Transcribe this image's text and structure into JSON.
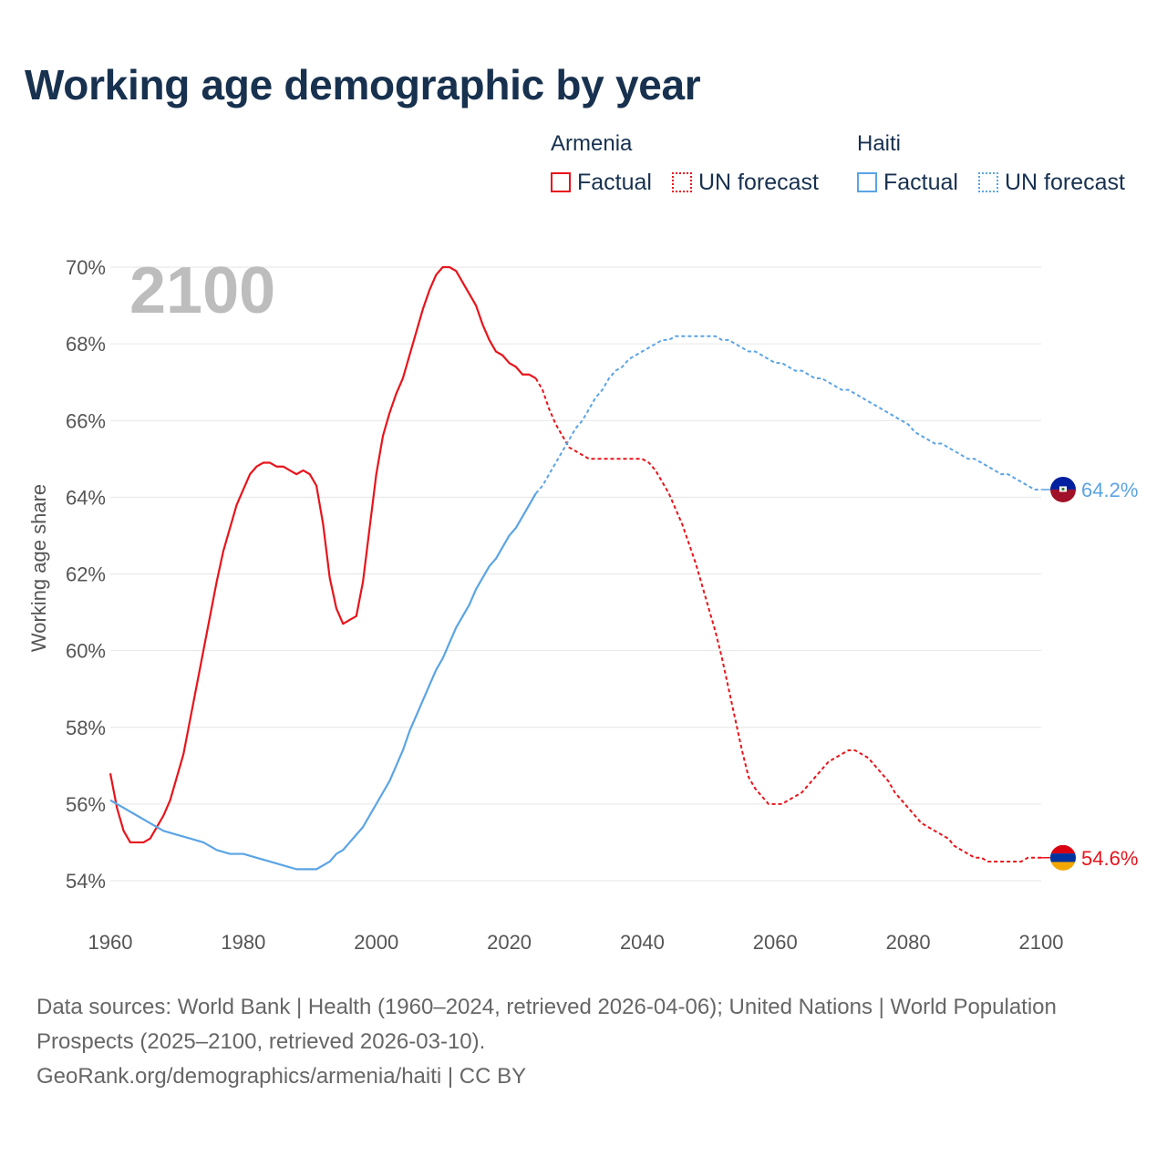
{
  "title": "Working age demographic by year",
  "legend": {
    "groups": [
      {
        "country": "Armenia",
        "color": "#e8141b",
        "factual_label": "Factual",
        "forecast_label": "UN forecast"
      },
      {
        "country": "Haiti",
        "color": "#5ba4e5",
        "factual_label": "Factual",
        "forecast_label": "UN forecast"
      }
    ]
  },
  "chart_data": {
    "type": "line",
    "title": "Working age demographic by year",
    "xlabel": "",
    "ylabel": "Working age share",
    "xlim": [
      1960,
      2100
    ],
    "ylim": [
      54,
      70
    ],
    "x_ticks": [
      "1960",
      "1980",
      "2000",
      "2020",
      "2040",
      "2060",
      "2080",
      "2100"
    ],
    "y_ticks": [
      "54%",
      "56%",
      "58%",
      "60%",
      "62%",
      "64%",
      "66%",
      "68%",
      "70%"
    ],
    "year_label": "2100",
    "factual_range": "1960–2024",
    "forecast_range": "2024–2100",
    "series": [
      {
        "name": "Armenia",
        "color": "#e8141b",
        "end_value": 54.6,
        "end_label": "54.6%",
        "factual": [
          [
            1960,
            56.8
          ],
          [
            1961,
            55.9
          ],
          [
            1962,
            55.3
          ],
          [
            1963,
            55.0
          ],
          [
            1964,
            55.0
          ],
          [
            1965,
            55.0
          ],
          [
            1966,
            55.1
          ],
          [
            1967,
            55.4
          ],
          [
            1968,
            55.7
          ],
          [
            1969,
            56.1
          ],
          [
            1970,
            56.7
          ],
          [
            1971,
            57.3
          ],
          [
            1972,
            58.2
          ],
          [
            1973,
            59.1
          ],
          [
            1974,
            60.0
          ],
          [
            1975,
            60.9
          ],
          [
            1976,
            61.8
          ],
          [
            1977,
            62.6
          ],
          [
            1978,
            63.2
          ],
          [
            1979,
            63.8
          ],
          [
            1980,
            64.2
          ],
          [
            1981,
            64.6
          ],
          [
            1982,
            64.8
          ],
          [
            1983,
            64.9
          ],
          [
            1984,
            64.9
          ],
          [
            1985,
            64.8
          ],
          [
            1986,
            64.8
          ],
          [
            1987,
            64.7
          ],
          [
            1988,
            64.6
          ],
          [
            1989,
            64.7
          ],
          [
            1990,
            64.6
          ],
          [
            1991,
            64.3
          ],
          [
            1992,
            63.3
          ],
          [
            1993,
            61.9
          ],
          [
            1994,
            61.1
          ],
          [
            1995,
            60.7
          ],
          [
            1996,
            60.8
          ],
          [
            1997,
            60.9
          ],
          [
            1998,
            61.8
          ],
          [
            1999,
            63.2
          ],
          [
            2000,
            64.6
          ],
          [
            2001,
            65.6
          ],
          [
            2002,
            66.2
          ],
          [
            2003,
            66.7
          ],
          [
            2004,
            67.1
          ],
          [
            2005,
            67.7
          ],
          [
            2006,
            68.3
          ],
          [
            2007,
            68.9
          ],
          [
            2008,
            69.4
          ],
          [
            2009,
            69.8
          ],
          [
            2010,
            70.0
          ],
          [
            2011,
            70.0
          ],
          [
            2012,
            69.9
          ],
          [
            2013,
            69.6
          ],
          [
            2014,
            69.3
          ],
          [
            2015,
            69.0
          ],
          [
            2016,
            68.5
          ],
          [
            2017,
            68.1
          ],
          [
            2018,
            67.8
          ],
          [
            2019,
            67.7
          ],
          [
            2020,
            67.5
          ],
          [
            2021,
            67.4
          ],
          [
            2022,
            67.2
          ],
          [
            2023,
            67.2
          ],
          [
            2024,
            67.1
          ]
        ],
        "forecast": [
          [
            2024,
            67.1
          ],
          [
            2025,
            66.8
          ],
          [
            2026,
            66.3
          ],
          [
            2027,
            65.9
          ],
          [
            2028,
            65.6
          ],
          [
            2029,
            65.3
          ],
          [
            2030,
            65.2
          ],
          [
            2031,
            65.1
          ],
          [
            2032,
            65.0
          ],
          [
            2034,
            65.0
          ],
          [
            2036,
            65.0
          ],
          [
            2038,
            65.0
          ],
          [
            2040,
            65.0
          ],
          [
            2041,
            64.9
          ],
          [
            2042,
            64.7
          ],
          [
            2043,
            64.4
          ],
          [
            2044,
            64.1
          ],
          [
            2045,
            63.7
          ],
          [
            2046,
            63.3
          ],
          [
            2047,
            62.8
          ],
          [
            2048,
            62.3
          ],
          [
            2049,
            61.7
          ],
          [
            2050,
            61.1
          ],
          [
            2051,
            60.5
          ],
          [
            2052,
            59.8
          ],
          [
            2053,
            59.0
          ],
          [
            2054,
            58.2
          ],
          [
            2055,
            57.4
          ],
          [
            2056,
            56.7
          ],
          [
            2057,
            56.4
          ],
          [
            2058,
            56.2
          ],
          [
            2059,
            56.0
          ],
          [
            2060,
            56.0
          ],
          [
            2061,
            56.0
          ],
          [
            2062,
            56.1
          ],
          [
            2063,
            56.2
          ],
          [
            2064,
            56.3
          ],
          [
            2065,
            56.5
          ],
          [
            2066,
            56.7
          ],
          [
            2067,
            56.9
          ],
          [
            2068,
            57.1
          ],
          [
            2069,
            57.2
          ],
          [
            2070,
            57.3
          ],
          [
            2071,
            57.4
          ],
          [
            2072,
            57.4
          ],
          [
            2073,
            57.3
          ],
          [
            2074,
            57.2
          ],
          [
            2075,
            57.0
          ],
          [
            2076,
            56.8
          ],
          [
            2077,
            56.6
          ],
          [
            2078,
            56.3
          ],
          [
            2079,
            56.1
          ],
          [
            2080,
            55.9
          ],
          [
            2081,
            55.7
          ],
          [
            2082,
            55.5
          ],
          [
            2083,
            55.4
          ],
          [
            2084,
            55.3
          ],
          [
            2085,
            55.2
          ],
          [
            2086,
            55.1
          ],
          [
            2087,
            54.9
          ],
          [
            2088,
            54.8
          ],
          [
            2089,
            54.7
          ],
          [
            2090,
            54.6
          ],
          [
            2091,
            54.6
          ],
          [
            2092,
            54.5
          ],
          [
            2093,
            54.5
          ],
          [
            2094,
            54.5
          ],
          [
            2095,
            54.5
          ],
          [
            2096,
            54.5
          ],
          [
            2097,
            54.5
          ],
          [
            2098,
            54.6
          ],
          [
            2099,
            54.6
          ],
          [
            2100,
            54.6
          ]
        ]
      },
      {
        "name": "Haiti",
        "color": "#5ba4e5",
        "end_value": 64.2,
        "end_label": "64.2%",
        "factual": [
          [
            1960,
            56.1
          ],
          [
            1962,
            55.9
          ],
          [
            1964,
            55.7
          ],
          [
            1966,
            55.5
          ],
          [
            1968,
            55.3
          ],
          [
            1970,
            55.2
          ],
          [
            1972,
            55.1
          ],
          [
            1974,
            55.0
          ],
          [
            1976,
            54.8
          ],
          [
            1978,
            54.7
          ],
          [
            1980,
            54.7
          ],
          [
            1982,
            54.6
          ],
          [
            1984,
            54.5
          ],
          [
            1986,
            54.4
          ],
          [
            1988,
            54.3
          ],
          [
            1990,
            54.3
          ],
          [
            1991,
            54.3
          ],
          [
            1992,
            54.4
          ],
          [
            1993,
            54.5
          ],
          [
            1994,
            54.7
          ],
          [
            1995,
            54.8
          ],
          [
            1996,
            55.0
          ],
          [
            1997,
            55.2
          ],
          [
            1998,
            55.4
          ],
          [
            1999,
            55.7
          ],
          [
            2000,
            56.0
          ],
          [
            2001,
            56.3
          ],
          [
            2002,
            56.6
          ],
          [
            2003,
            57.0
          ],
          [
            2004,
            57.4
          ],
          [
            2005,
            57.9
          ],
          [
            2006,
            58.3
          ],
          [
            2007,
            58.7
          ],
          [
            2008,
            59.1
          ],
          [
            2009,
            59.5
          ],
          [
            2010,
            59.8
          ],
          [
            2011,
            60.2
          ],
          [
            2012,
            60.6
          ],
          [
            2013,
            60.9
          ],
          [
            2014,
            61.2
          ],
          [
            2015,
            61.6
          ],
          [
            2016,
            61.9
          ],
          [
            2017,
            62.2
          ],
          [
            2018,
            62.4
          ],
          [
            2019,
            62.7
          ],
          [
            2020,
            63.0
          ],
          [
            2021,
            63.2
          ],
          [
            2022,
            63.5
          ],
          [
            2023,
            63.8
          ],
          [
            2024,
            64.1
          ]
        ],
        "forecast": [
          [
            2024,
            64.1
          ],
          [
            2025,
            64.3
          ],
          [
            2026,
            64.6
          ],
          [
            2027,
            64.9
          ],
          [
            2028,
            65.2
          ],
          [
            2029,
            65.5
          ],
          [
            2030,
            65.8
          ],
          [
            2031,
            66.0
          ],
          [
            2032,
            66.3
          ],
          [
            2033,
            66.6
          ],
          [
            2034,
            66.8
          ],
          [
            2035,
            67.1
          ],
          [
            2036,
            67.3
          ],
          [
            2037,
            67.4
          ],
          [
            2038,
            67.6
          ],
          [
            2039,
            67.7
          ],
          [
            2040,
            67.8
          ],
          [
            2041,
            67.9
          ],
          [
            2042,
            68.0
          ],
          [
            2043,
            68.1
          ],
          [
            2044,
            68.1
          ],
          [
            2045,
            68.2
          ],
          [
            2046,
            68.2
          ],
          [
            2048,
            68.2
          ],
          [
            2050,
            68.2
          ],
          [
            2051,
            68.2
          ],
          [
            2052,
            68.1
          ],
          [
            2053,
            68.1
          ],
          [
            2054,
            68.0
          ],
          [
            2055,
            67.9
          ],
          [
            2056,
            67.8
          ],
          [
            2057,
            67.8
          ],
          [
            2058,
            67.7
          ],
          [
            2059,
            67.6
          ],
          [
            2060,
            67.5
          ],
          [
            2061,
            67.5
          ],
          [
            2062,
            67.4
          ],
          [
            2063,
            67.3
          ],
          [
            2064,
            67.3
          ],
          [
            2065,
            67.2
          ],
          [
            2066,
            67.1
          ],
          [
            2067,
            67.1
          ],
          [
            2068,
            67.0
          ],
          [
            2069,
            66.9
          ],
          [
            2070,
            66.8
          ],
          [
            2071,
            66.8
          ],
          [
            2072,
            66.7
          ],
          [
            2073,
            66.6
          ],
          [
            2074,
            66.5
          ],
          [
            2075,
            66.4
          ],
          [
            2076,
            66.3
          ],
          [
            2077,
            66.2
          ],
          [
            2078,
            66.1
          ],
          [
            2079,
            66.0
          ],
          [
            2080,
            65.9
          ],
          [
            2081,
            65.7
          ],
          [
            2082,
            65.6
          ],
          [
            2083,
            65.5
          ],
          [
            2084,
            65.4
          ],
          [
            2085,
            65.4
          ],
          [
            2086,
            65.3
          ],
          [
            2087,
            65.2
          ],
          [
            2088,
            65.1
          ],
          [
            2089,
            65.0
          ],
          [
            2090,
            65.0
          ],
          [
            2091,
            64.9
          ],
          [
            2092,
            64.8
          ],
          [
            2093,
            64.7
          ],
          [
            2094,
            64.6
          ],
          [
            2095,
            64.6
          ],
          [
            2096,
            64.5
          ],
          [
            2097,
            64.4
          ],
          [
            2098,
            64.3
          ],
          [
            2099,
            64.2
          ],
          [
            2100,
            64.2
          ]
        ]
      }
    ]
  },
  "footer": {
    "sources": "Data sources: World Bank | Health (1960–2024, retrieved 2026-04-06); United Nations | World Population Prospects (2025–2100, retrieved 2026-03-10).",
    "attribution": "GeoRank.org/demographics/armenia/haiti | CC BY"
  }
}
